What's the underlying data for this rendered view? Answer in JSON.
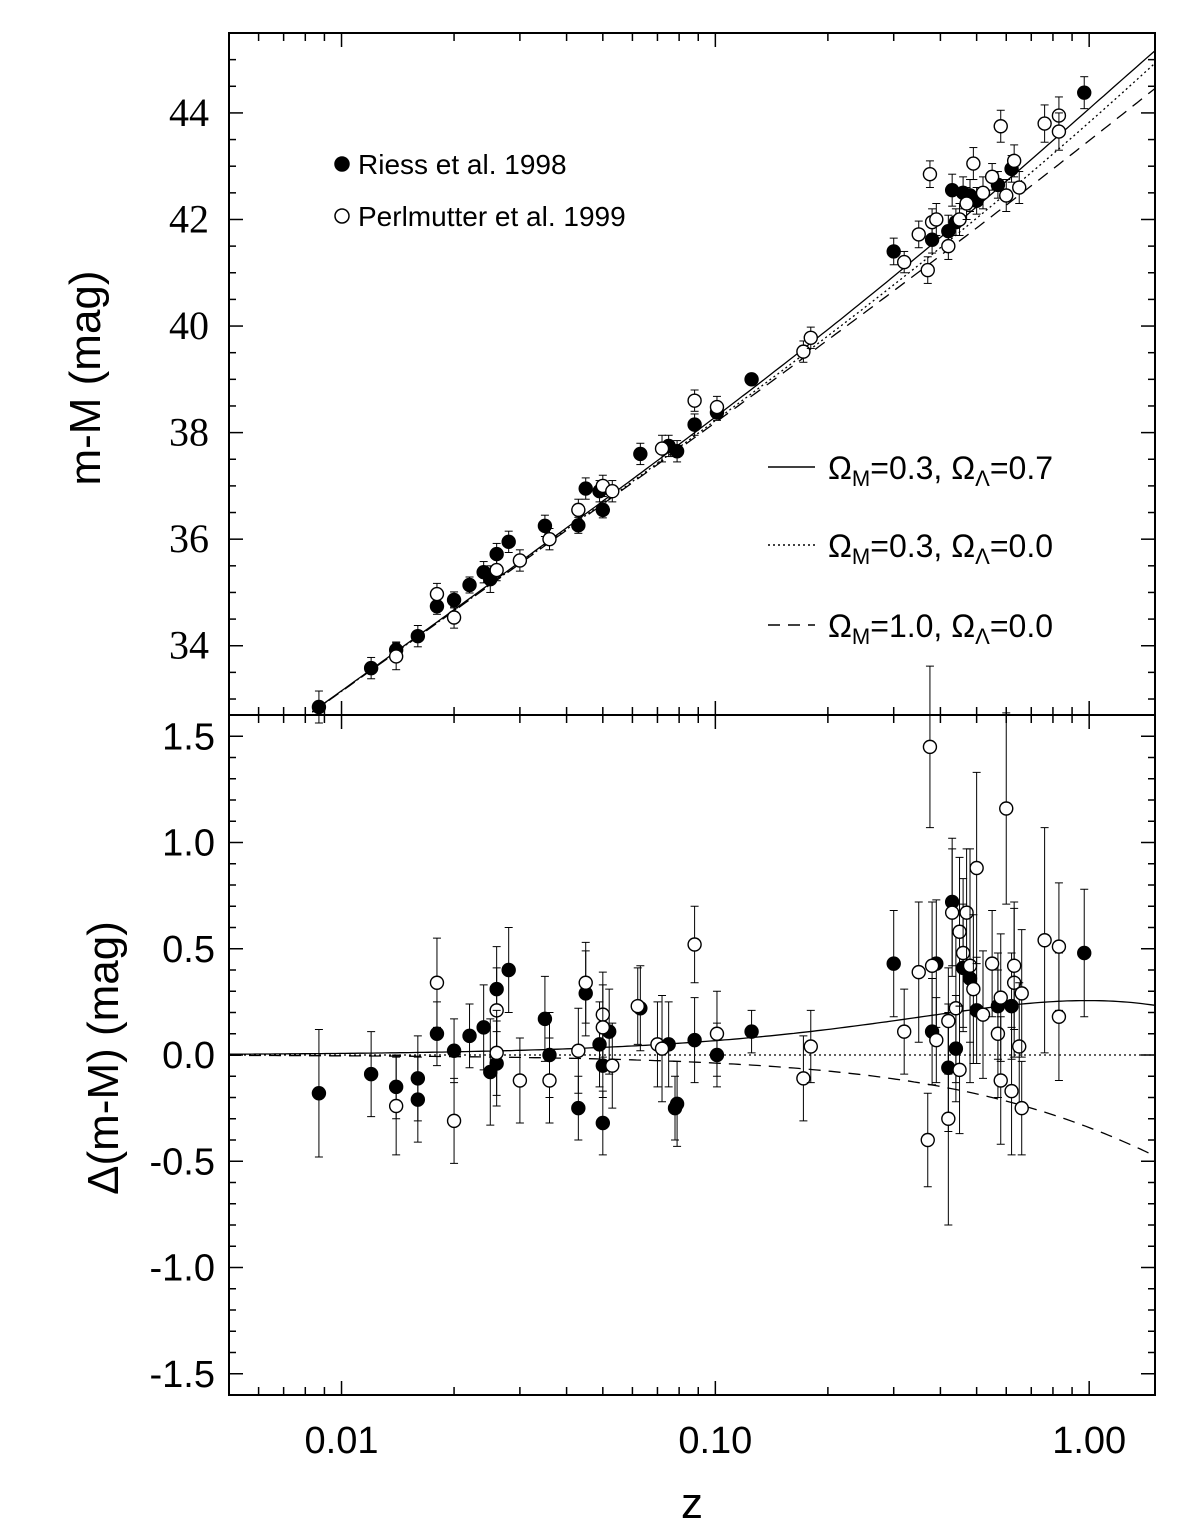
{
  "chart_data": [
    {
      "type": "scatter",
      "panel": "top",
      "xlabel": "",
      "ylabel": "m-M (mag)",
      "xscale": "log",
      "xlim": [
        0.005,
        1.5
      ],
      "ylim": [
        32.7,
        45.5
      ],
      "yticks": [
        34,
        36,
        38,
        40,
        42,
        44
      ],
      "legend": {
        "placement": "top-left",
        "entries": [
          {
            "marker": "filled-circle",
            "label": "Riess et al. 1998"
          },
          {
            "marker": "open-circle",
            "label": "Perlmutter et al. 1999"
          }
        ]
      },
      "model_legend": {
        "placement": "right",
        "entries": [
          {
            "linestyle": "solid",
            "om_label": "Ω",
            "om_sub": "M",
            "om_val": "=0.3, ",
            "ol_label": "Ω",
            "ol_sub": "Λ",
            "ol_val": "=0.7"
          },
          {
            "linestyle": "dotted",
            "om_label": "Ω",
            "om_sub": "M",
            "om_val": "=0.3, ",
            "ol_label": "Ω",
            "ol_sub": "Λ",
            "ol_val": "=0.0"
          },
          {
            "linestyle": "dashed",
            "om_label": "Ω",
            "om_sub": "M",
            "om_val": "=1.0, ",
            "ol_label": "Ω",
            "ol_sub": "Λ",
            "ol_val": "=0.0"
          }
        ]
      },
      "models": [
        {
          "style": "solid",
          "om": 0.3,
          "ol": 0.7
        },
        {
          "style": "dotted",
          "om": 0.3,
          "ol": 0.0
        },
        {
          "style": "dashed",
          "om": 1.0,
          "ol": 0.0
        }
      ],
      "series": [
        {
          "name": "Riess et al. 1998",
          "marker": "filled",
          "points": [
            {
              "z": 0.0087,
              "mu": 32.85,
              "err": 0.3
            },
            {
              "z": 0.012,
              "mu": 33.58,
              "err": 0.2
            },
            {
              "z": 0.014,
              "mu": 33.92,
              "err": 0.15
            },
            {
              "z": 0.016,
              "mu": 34.18,
              "err": 0.2
            },
            {
              "z": 0.018,
              "mu": 34.74,
              "err": 0.15
            },
            {
              "z": 0.02,
              "mu": 34.86,
              "err": 0.15
            },
            {
              "z": 0.022,
              "mu": 35.14,
              "err": 0.15
            },
            {
              "z": 0.024,
              "mu": 35.38,
              "err": 0.2
            },
            {
              "z": 0.025,
              "mu": 35.25,
              "err": 0.25
            },
            {
              "z": 0.026,
              "mu": 35.72,
              "err": 0.2
            },
            {
              "z": 0.028,
              "mu": 35.95,
              "err": 0.2
            },
            {
              "z": 0.035,
              "mu": 36.25,
              "err": 0.2
            },
            {
              "z": 0.043,
              "mu": 36.26,
              "err": 0.15
            },
            {
              "z": 0.045,
              "mu": 36.95,
              "err": 0.2
            },
            {
              "z": 0.049,
              "mu": 36.9,
              "err": 0.2
            },
            {
              "z": 0.05,
              "mu": 36.55,
              "err": 0.15
            },
            {
              "z": 0.063,
              "mu": 37.6,
              "err": 0.2
            },
            {
              "z": 0.075,
              "mu": 37.75,
              "err": 0.2
            },
            {
              "z": 0.079,
              "mu": 37.65,
              "err": 0.2
            },
            {
              "z": 0.088,
              "mu": 38.15,
              "err": 0.2
            },
            {
              "z": 0.101,
              "mu": 38.38,
              "err": 0.15
            },
            {
              "z": 0.125,
              "mu": 39.0,
              "err": 0.1
            },
            {
              "z": 0.3,
              "mu": 41.4,
              "err": 0.25
            },
            {
              "z": 0.38,
              "mu": 41.62,
              "err": 0.25
            },
            {
              "z": 0.42,
              "mu": 41.78,
              "err": 0.3
            },
            {
              "z": 0.43,
              "mu": 42.55,
              "err": 0.3
            },
            {
              "z": 0.44,
              "mu": 41.95,
              "err": 0.25
            },
            {
              "z": 0.46,
              "mu": 42.5,
              "err": 0.3
            },
            {
              "z": 0.48,
              "mu": 42.45,
              "err": 0.3
            },
            {
              "z": 0.5,
              "mu": 42.35,
              "err": 0.25
            },
            {
              "z": 0.57,
              "mu": 42.65,
              "err": 0.25
            },
            {
              "z": 0.62,
              "mu": 42.95,
              "err": 0.25
            },
            {
              "z": 0.97,
              "mu": 44.38,
              "err": 0.3
            }
          ]
        },
        {
          "name": "Perlmutter et al. 1999",
          "marker": "open",
          "points": [
            {
              "z": 0.014,
              "mu": 33.8,
              "err": 0.25
            },
            {
              "z": 0.018,
              "mu": 34.97,
              "err": 0.2
            },
            {
              "z": 0.02,
              "mu": 34.53,
              "err": 0.2
            },
            {
              "z": 0.026,
              "mu": 35.42,
              "err": 0.2
            },
            {
              "z": 0.03,
              "mu": 35.6,
              "err": 0.2
            },
            {
              "z": 0.036,
              "mu": 36.0,
              "err": 0.2
            },
            {
              "z": 0.043,
              "mu": 36.55,
              "err": 0.2
            },
            {
              "z": 0.05,
              "mu": 37.0,
              "err": 0.2
            },
            {
              "z": 0.053,
              "mu": 36.9,
              "err": 0.2
            },
            {
              "z": 0.072,
              "mu": 37.7,
              "err": 0.25
            },
            {
              "z": 0.088,
              "mu": 38.6,
              "err": 0.2
            },
            {
              "z": 0.101,
              "mu": 38.48,
              "err": 0.2
            },
            {
              "z": 0.172,
              "mu": 39.52,
              "err": 0.2
            },
            {
              "z": 0.18,
              "mu": 39.78,
              "err": 0.2
            },
            {
              "z": 0.32,
              "mu": 41.2,
              "err": 0.2
            },
            {
              "z": 0.35,
              "mu": 41.72,
              "err": 0.25
            },
            {
              "z": 0.37,
              "mu": 41.05,
              "err": 0.25
            },
            {
              "z": 0.375,
              "mu": 42.85,
              "err": 0.25
            },
            {
              "z": 0.38,
              "mu": 41.95,
              "err": 0.25
            },
            {
              "z": 0.39,
              "mu": 42.0,
              "err": 0.3
            },
            {
              "z": 0.42,
              "mu": 41.5,
              "err": 0.25
            },
            {
              "z": 0.45,
              "mu": 42.0,
              "err": 0.3
            },
            {
              "z": 0.47,
              "mu": 42.3,
              "err": 0.3
            },
            {
              "z": 0.49,
              "mu": 43.05,
              "err": 0.3
            },
            {
              "z": 0.52,
              "mu": 42.5,
              "err": 0.3
            },
            {
              "z": 0.55,
              "mu": 42.8,
              "err": 0.25
            },
            {
              "z": 0.58,
              "mu": 43.75,
              "err": 0.3
            },
            {
              "z": 0.6,
              "mu": 42.45,
              "err": 0.3
            },
            {
              "z": 0.63,
              "mu": 43.1,
              "err": 0.3
            },
            {
              "z": 0.65,
              "mu": 42.6,
              "err": 0.3
            },
            {
              "z": 0.76,
              "mu": 43.8,
              "err": 0.35
            },
            {
              "z": 0.83,
              "mu": 43.95,
              "err": 0.35
            },
            {
              "z": 0.83,
              "mu": 43.65,
              "err": 0.35
            }
          ]
        }
      ]
    },
    {
      "type": "scatter",
      "panel": "bottom",
      "xlabel": "z",
      "ylabel": "Δ(m-M) (mag)",
      "xscale": "log",
      "xlim": [
        0.005,
        1.5
      ],
      "ylim": [
        -1.6,
        1.6
      ],
      "xticks": [
        0.01,
        0.1,
        1.0
      ],
      "xtick_labels": [
        "0.01",
        "0.10",
        "1.00"
      ],
      "yticks": [
        -1.5,
        -1.0,
        -0.5,
        0.0,
        0.5,
        1.0,
        1.5
      ],
      "ytick_labels": [
        "-1.5",
        "-1.0",
        "-0.5",
        "0.0",
        "0.5",
        "1.0",
        "1.5"
      ],
      "series": [
        {
          "name": "Riess et al. 1998",
          "marker": "filled",
          "points": [
            {
              "z": 0.0087,
              "d": -0.18,
              "err": 0.3
            },
            {
              "z": 0.012,
              "d": -0.09,
              "err": 0.2
            },
            {
              "z": 0.014,
              "d": -0.15,
              "err": 0.15
            },
            {
              "z": 0.016,
              "d": -0.11,
              "err": 0.2
            },
            {
              "z": 0.016,
              "d": -0.21,
              "err": 0.2
            },
            {
              "z": 0.018,
              "d": 0.1,
              "err": 0.15
            },
            {
              "z": 0.02,
              "d": 0.02,
              "err": 0.15
            },
            {
              "z": 0.022,
              "d": 0.09,
              "err": 0.15
            },
            {
              "z": 0.024,
              "d": 0.13,
              "err": 0.2
            },
            {
              "z": 0.025,
              "d": -0.08,
              "err": 0.25
            },
            {
              "z": 0.026,
              "d": -0.04,
              "err": 0.2
            },
            {
              "z": 0.026,
              "d": 0.31,
              "err": 0.2
            },
            {
              "z": 0.028,
              "d": 0.4,
              "err": 0.2
            },
            {
              "z": 0.035,
              "d": 0.17,
              "err": 0.2
            },
            {
              "z": 0.036,
              "d": 0.0,
              "err": 0.2
            },
            {
              "z": 0.043,
              "d": -0.25,
              "err": 0.15
            },
            {
              "z": 0.045,
              "d": 0.29,
              "err": 0.2
            },
            {
              "z": 0.049,
              "d": 0.05,
              "err": 0.2
            },
            {
              "z": 0.05,
              "d": -0.05,
              "err": 0.15
            },
            {
              "z": 0.05,
              "d": -0.32,
              "err": 0.15
            },
            {
              "z": 0.052,
              "d": 0.11,
              "err": 0.2
            },
            {
              "z": 0.063,
              "d": 0.22,
              "err": 0.2
            },
            {
              "z": 0.075,
              "d": 0.05,
              "err": 0.2
            },
            {
              "z": 0.079,
              "d": -0.23,
              "err": 0.2
            },
            {
              "z": 0.078,
              "d": -0.25,
              "err": 0.15
            },
            {
              "z": 0.088,
              "d": 0.07,
              "err": 0.2
            },
            {
              "z": 0.101,
              "d": 0.0,
              "err": 0.15
            },
            {
              "z": 0.125,
              "d": 0.11,
              "err": 0.1
            },
            {
              "z": 0.3,
              "d": 0.43,
              "err": 0.25
            },
            {
              "z": 0.38,
              "d": 0.11,
              "err": 0.25
            },
            {
              "z": 0.39,
              "d": 0.43,
              "err": 0.3
            },
            {
              "z": 0.42,
              "d": -0.06,
              "err": 0.3
            },
            {
              "z": 0.43,
              "d": 0.72,
              "err": 0.3
            },
            {
              "z": 0.44,
              "d": 0.03,
              "err": 0.25
            },
            {
              "z": 0.46,
              "d": 0.41,
              "err": 0.3
            },
            {
              "z": 0.48,
              "d": 0.36,
              "err": 0.3
            },
            {
              "z": 0.5,
              "d": 0.21,
              "err": 0.25
            },
            {
              "z": 0.57,
              "d": 0.23,
              "err": 0.25
            },
            {
              "z": 0.62,
              "d": 0.23,
              "err": 0.25
            },
            {
              "z": 0.97,
              "d": 0.48,
              "err": 0.3
            }
          ]
        },
        {
          "name": "Perlmutter et al. 1999",
          "marker": "open",
          "points": [
            {
              "z": 0.014,
              "d": -0.24,
              "err": 0.23
            },
            {
              "z": 0.018,
              "d": 0.34,
              "err": 0.21
            },
            {
              "z": 0.02,
              "d": -0.31,
              "err": 0.2
            },
            {
              "z": 0.026,
              "d": 0.21,
              "err": 0.2
            },
            {
              "z": 0.026,
              "d": 0.01,
              "err": 0.2
            },
            {
              "z": 0.03,
              "d": -0.12,
              "err": 0.2
            },
            {
              "z": 0.036,
              "d": -0.12,
              "err": 0.2
            },
            {
              "z": 0.043,
              "d": 0.02,
              "err": 0.2
            },
            {
              "z": 0.045,
              "d": 0.34,
              "err": 0.19
            },
            {
              "z": 0.05,
              "d": 0.19,
              "err": 0.2
            },
            {
              "z": 0.05,
              "d": 0.13,
              "err": 0.2
            },
            {
              "z": 0.053,
              "d": -0.05,
              "err": 0.2
            },
            {
              "z": 0.062,
              "d": 0.23,
              "err": 0.18
            },
            {
              "z": 0.07,
              "d": 0.05,
              "err": 0.2
            },
            {
              "z": 0.072,
              "d": 0.03,
              "err": 0.25
            },
            {
              "z": 0.088,
              "d": 0.52,
              "err": 0.18
            },
            {
              "z": 0.101,
              "d": 0.1,
              "err": 0.2
            },
            {
              "z": 0.172,
              "d": -0.11,
              "err": 0.2
            },
            {
              "z": 0.18,
              "d": 0.04,
              "err": 0.17
            },
            {
              "z": 0.32,
              "d": 0.11,
              "err": 0.2
            },
            {
              "z": 0.35,
              "d": 0.39,
              "err": 0.33
            },
            {
              "z": 0.37,
              "d": -0.4,
              "err": 0.22
            },
            {
              "z": 0.375,
              "d": 1.45,
              "err": 0.38
            },
            {
              "z": 0.38,
              "d": 0.42,
              "err": 0.3
            },
            {
              "z": 0.39,
              "d": 0.07,
              "err": 0.2
            },
            {
              "z": 0.42,
              "d": -0.3,
              "err": 0.5
            },
            {
              "z": 0.42,
              "d": 0.16,
              "err": 0.25
            },
            {
              "z": 0.43,
              "d": 0.67,
              "err": 0.3
            },
            {
              "z": 0.44,
              "d": 0.22,
              "err": 0.35
            },
            {
              "z": 0.45,
              "d": 0.58,
              "err": 0.35
            },
            {
              "z": 0.46,
              "d": 0.48,
              "err": 0.35
            },
            {
              "z": 0.47,
              "d": 0.67,
              "err": 0.3
            },
            {
              "z": 0.48,
              "d": 0.42,
              "err": 0.55
            },
            {
              "z": 0.45,
              "d": -0.07,
              "err": 0.3
            },
            {
              "z": 0.49,
              "d": 0.31,
              "err": 0.35
            },
            {
              "z": 0.5,
              "d": 0.88,
              "err": 0.45
            },
            {
              "z": 0.52,
              "d": 0.19,
              "err": 0.3
            },
            {
              "z": 0.55,
              "d": 0.43,
              "err": 0.25
            },
            {
              "z": 0.57,
              "d": 0.1,
              "err": 0.3
            },
            {
              "z": 0.58,
              "d": 0.27,
              "err": 0.3
            },
            {
              "z": 0.58,
              "d": -0.12,
              "err": 0.3
            },
            {
              "z": 0.6,
              "d": 1.16,
              "err": 0.45
            },
            {
              "z": 0.62,
              "d": -0.17,
              "err": 0.3
            },
            {
              "z": 0.63,
              "d": 0.34,
              "err": 0.35
            },
            {
              "z": 0.63,
              "d": 0.42,
              "err": 0.3
            },
            {
              "z": 0.65,
              "d": 0.04,
              "err": 0.3
            },
            {
              "z": 0.66,
              "d": -0.25,
              "err": 0.22
            },
            {
              "z": 0.66,
              "d": 0.29,
              "err": 0.3
            },
            {
              "z": 0.76,
              "d": 0.54,
              "err": 0.53
            },
            {
              "z": 0.83,
              "d": 0.51,
              "err": 0.3
            },
            {
              "z": 0.83,
              "d": 0.18,
              "err": 0.3
            }
          ]
        }
      ]
    }
  ]
}
